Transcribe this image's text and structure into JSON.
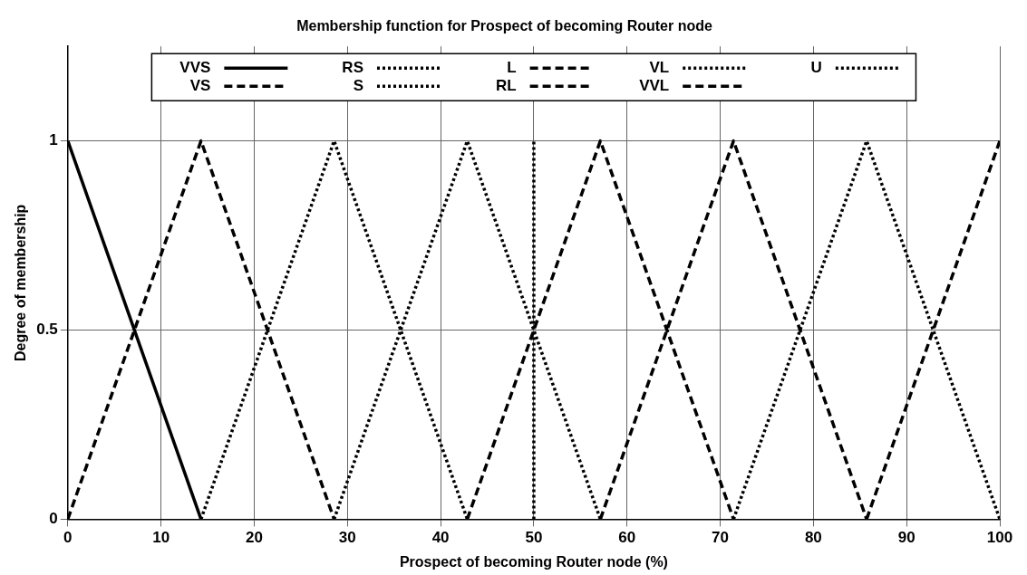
{
  "chart_data": {
    "type": "line",
    "title": "Membership function for Prospect of becoming Router node",
    "xlabel": "Prospect of becoming Router node (%)",
    "ylabel": "Degree of membership",
    "xlim": [
      0,
      100
    ],
    "xticks": [
      0,
      10,
      20,
      30,
      40,
      50,
      60,
      70,
      80,
      90,
      100
    ],
    "ylim": [
      0,
      1.25
    ],
    "yticks": [
      0,
      0.5,
      1
    ],
    "grid": true,
    "legend": "top",
    "marker": "none",
    "series": [
      {
        "name": "VVS",
        "color": "#000000",
        "line_style": "solid",
        "x": [
          0,
          14.29
        ],
        "values": [
          1,
          0
        ]
      },
      {
        "name": "VS",
        "color": "#000000",
        "line_style": "dashed",
        "x": [
          0,
          14.29,
          28.57
        ],
        "values": [
          0,
          1,
          0
        ]
      },
      {
        "name": "RS",
        "color": "#000000",
        "line_style": "dotted",
        "x": [
          14.29,
          28.57,
          42.86
        ],
        "values": [
          0,
          1,
          0
        ]
      },
      {
        "name": "S",
        "color": "#000000",
        "line_style": "dotted",
        "x": [
          28.57,
          42.86,
          57.14
        ],
        "values": [
          0,
          1,
          0
        ]
      },
      {
        "name": "L",
        "color": "#000000",
        "line_style": "dashed",
        "x": [
          42.86,
          57.14,
          71.43
        ],
        "values": [
          0,
          1,
          0
        ]
      },
      {
        "name": "RL",
        "color": "#000000",
        "line_style": "dashed",
        "x": [
          57.14,
          71.43,
          85.71
        ],
        "values": [
          0,
          1,
          0
        ]
      },
      {
        "name": "VL",
        "color": "#000000",
        "line_style": "dotted",
        "x": [
          71.43,
          85.71,
          100
        ],
        "values": [
          0,
          1,
          0
        ]
      },
      {
        "name": "VVL",
        "color": "#000000",
        "line_style": "dashed",
        "x": [
          85.71,
          100
        ],
        "values": [
          0,
          1
        ]
      },
      {
        "name": "U",
        "color": "#000000",
        "line_style": "dotted",
        "x": [
          50,
          50
        ],
        "values": [
          0,
          1
        ]
      }
    ]
  }
}
